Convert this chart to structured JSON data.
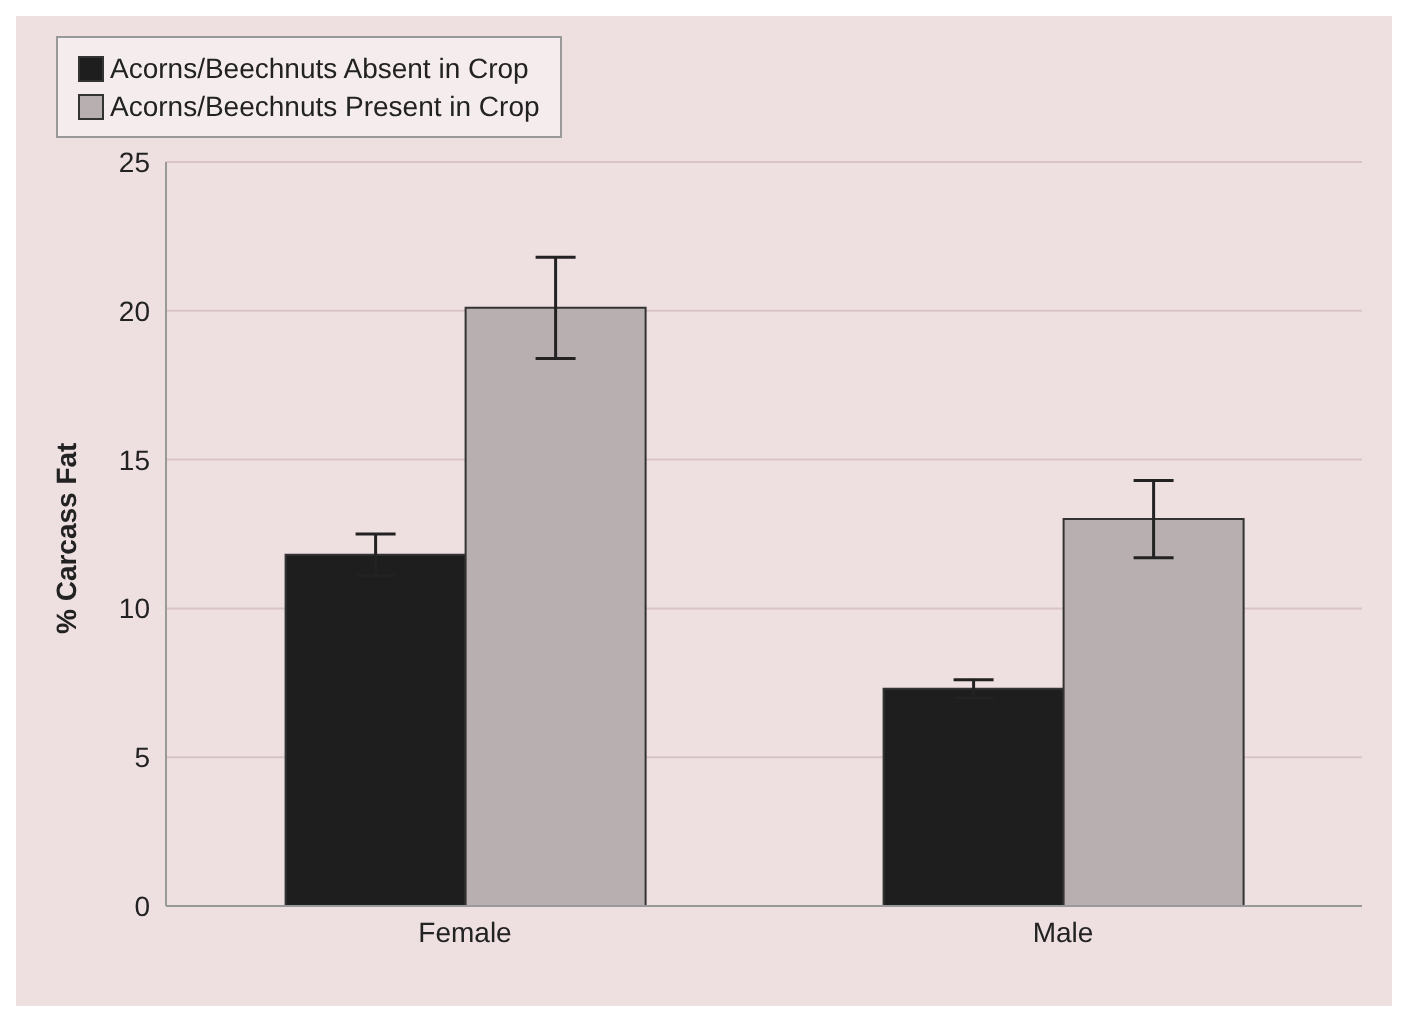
{
  "chart_data": {
    "type": "bar",
    "ylabel": "% Carcass Fat",
    "categories": [
      "Female",
      "Male"
    ],
    "series": [
      {
        "name": "Acorns/Beechnuts Absent in Crop",
        "color": "#1e1e1e",
        "values": [
          11.8,
          7.3
        ],
        "errors": [
          0.7,
          0.3
        ]
      },
      {
        "name": "Acorns/Beechnuts Present in Crop",
        "color": "#b8b0b0",
        "values": [
          20.1,
          13.0
        ],
        "errors": [
          1.7,
          1.3
        ]
      }
    ],
    "ylim": [
      0,
      25
    ],
    "yticks": [
      0,
      5,
      10,
      15,
      20,
      25
    ],
    "grid": "y",
    "legend": "top"
  }
}
